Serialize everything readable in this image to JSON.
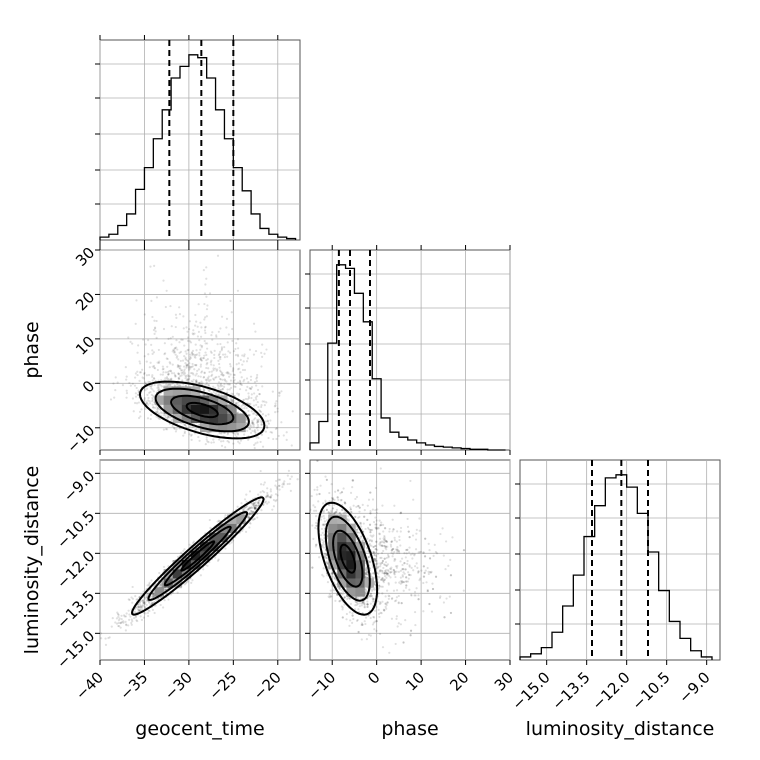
{
  "chart_data": {
    "type": "corner",
    "parameters": [
      "geocent_time",
      "phase",
      "luminosity_distance"
    ],
    "ranges": {
      "geocent_time": [
        -40,
        -17.5
      ],
      "phase": [
        -15,
        30
      ],
      "luminosity_distance": [
        -16,
        -8.5
      ]
    },
    "ticks": {
      "geocent_time": [
        -40,
        -35,
        -30,
        -25,
        -20
      ],
      "phase": [
        -10,
        0,
        10,
        20,
        30
      ],
      "luminosity_distance": [
        -15.0,
        -13.5,
        -12.0,
        -10.5,
        -9.0
      ]
    },
    "tick_labels": {
      "geocent_time": [
        "−40",
        "−35",
        "−30",
        "−25",
        "−20"
      ],
      "phase_x": [
        "−10",
        "0",
        "10",
        "20",
        "30"
      ],
      "phase_y": [
        "−10",
        "0",
        "10",
        "20",
        "30"
      ],
      "luminosity_distance_x": [
        "−15.0",
        "−13.5",
        "−12.0",
        "−10.5",
        "−9.0"
      ],
      "luminosity_distance_y": [
        "−15.0",
        "−13.5",
        "−12.0",
        "−10.5",
        "−9.0"
      ]
    },
    "quantiles": {
      "geocent_time": [
        -32.2,
        -28.6,
        -25.0
      ],
      "phase": [
        -8.5,
        -6.0,
        -1.5
      ],
      "luminosity_distance": [
        -13.3,
        -12.2,
        -11.2
      ]
    },
    "histograms": {
      "geocent_time": {
        "edges": [
          -40,
          -39,
          -38,
          -37,
          -36,
          -35,
          -34,
          -33,
          -32,
          -31,
          -30,
          -29,
          -28,
          -27,
          -26,
          -25,
          -24,
          -23,
          -22,
          -21,
          -20,
          -19,
          -18
        ],
        "counts": [
          2,
          4,
          10,
          18,
          35,
          50,
          70,
          90,
          112,
          120,
          128,
          126,
          112,
          90,
          70,
          50,
          34,
          18,
          8,
          4,
          2,
          1
        ]
      },
      "phase": {
        "edges": [
          -15,
          -13,
          -11,
          -9,
          -7,
          -5,
          -3,
          -1,
          1,
          3,
          5,
          7,
          9,
          11,
          13,
          15,
          17,
          19,
          21,
          23,
          25,
          27,
          29
        ],
        "counts": [
          10,
          40,
          150,
          260,
          255,
          220,
          180,
          100,
          45,
          25,
          18,
          14,
          10,
          7,
          5,
          4,
          3,
          2,
          1,
          1,
          0,
          0
        ]
      },
      "luminosity_distance": {
        "edges": [
          -16,
          -15.6,
          -15.2,
          -14.8,
          -14.4,
          -14,
          -13.6,
          -13.2,
          -12.8,
          -12.4,
          -12,
          -11.6,
          -11.2,
          -10.8,
          -10.4,
          -10,
          -9.6,
          -9.2,
          -8.8
        ],
        "counts": [
          2,
          4,
          8,
          18,
          35,
          55,
          80,
          100,
          118,
          120,
          112,
          95,
          70,
          45,
          25,
          14,
          6,
          2
        ]
      }
    },
    "pairs": [
      {
        "x": "geocent_time",
        "y": "phase",
        "x_mean": -28.5,
        "y_mean": -6.0,
        "x_sd": 3.5,
        "y_sd": 3.2,
        "corr": -0.55,
        "y_scatter_tail": 10,
        "contour_levels": [
          0.5,
          1.0,
          1.5,
          2.0
        ]
      },
      {
        "x": "geocent_time",
        "y": "luminosity_distance",
        "x_mean": -29.0,
        "y_mean": -12.1,
        "x_sd": 3.7,
        "y_sd": 1.1,
        "corr": 0.97,
        "contour_levels": [
          0.5,
          1.0,
          1.5,
          2.0
        ]
      },
      {
        "x": "phase",
        "y": "luminosity_distance",
        "x_mean": -6.5,
        "y_mean": -12.2,
        "x_sd": 3.3,
        "y_sd": 1.05,
        "corr": -0.55,
        "x_scatter_tail": 9,
        "contour_levels": [
          0.5,
          1.0,
          1.5,
          2.0
        ]
      }
    ],
    "grid": true
  }
}
